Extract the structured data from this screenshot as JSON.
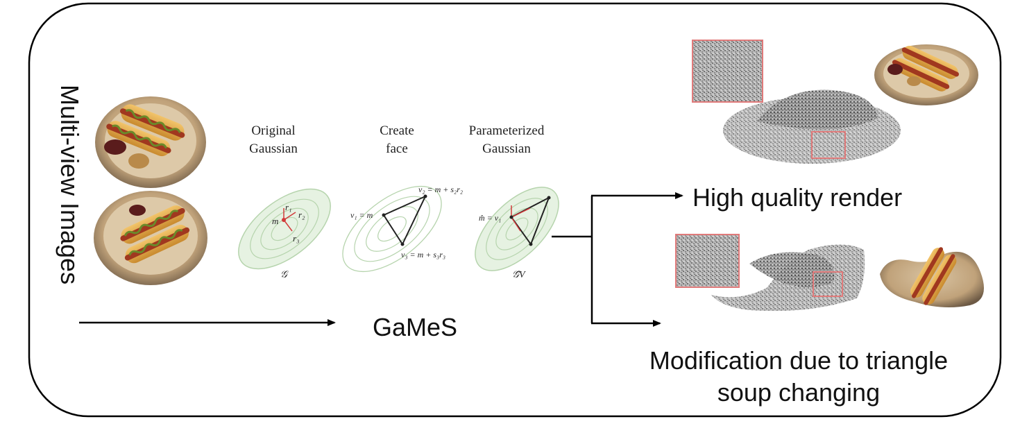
{
  "input_label": "Multi-view Images",
  "method_name": "GaMeS",
  "steps": [
    {
      "title_line1": "Original",
      "title_line2": "Gaussian",
      "symbol": "𝒢"
    },
    {
      "title_line1": "Create",
      "title_line2": "face"
    },
    {
      "title_line1": "Parameterized",
      "title_line2": "Gaussian",
      "symbol": "𝒢̂V"
    }
  ],
  "math_labels": {
    "m": "m",
    "r1": "r₁",
    "r2": "r₂",
    "r3": "r₃",
    "v2_eq": "v₂ = m + s₂r₂",
    "v1_eq": "v₁ = m",
    "v3_eq": "v₃ = m + s₃r₃",
    "mhat_eq": "m̂ = v₁"
  },
  "outputs": {
    "render_label": "High quality render",
    "modification_line1": "Modification due to triangle",
    "modification_line2": "soup changing"
  },
  "colors": {
    "ellipse_fill": "#e6f2e2",
    "ellipse_stroke": "#b6d4ad",
    "accent_red": "#d23a3a",
    "zoom_box": "#e07a7a"
  }
}
